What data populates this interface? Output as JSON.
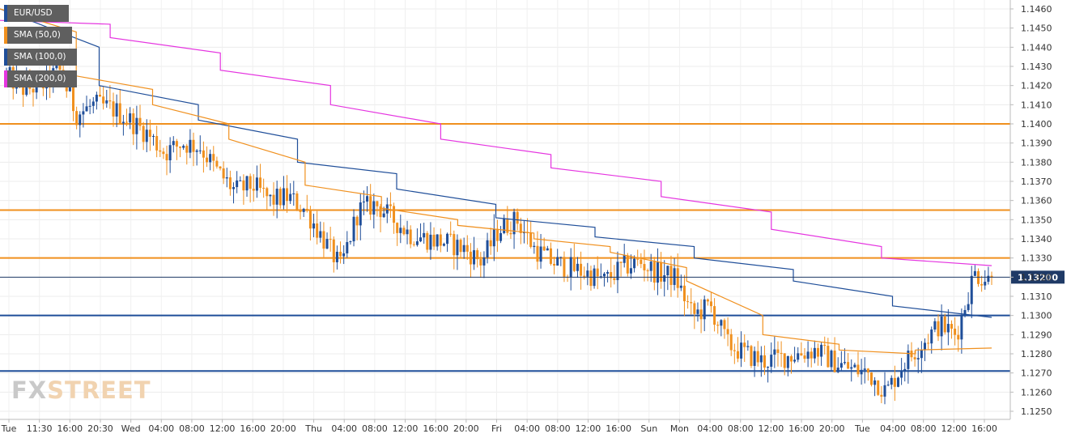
{
  "legend": {
    "symbol": "EUR/USD",
    "sma50": "SMA (50,0)",
    "sma100": "SMA (100,0)",
    "sma200": "SMA (200,0)"
  },
  "watermark": {
    "part1": "FX",
    "part2": "STREET"
  },
  "colors": {
    "bull": "#1f4e99",
    "bear": "#f0901e",
    "sma50": "#f0901e",
    "sma100": "#1f4e99",
    "sma200": "#e535e0",
    "resistance": "#f0901e",
    "support": "#1f4e99"
  },
  "chart_data": {
    "type": "candlestick",
    "ylim": [
      1.125,
      1.1465
    ],
    "yticks": [
      "1.1460",
      "1.1450",
      "1.1440",
      "1.1430",
      "1.1420",
      "1.1410",
      "1.1400",
      "1.1390",
      "1.1380",
      "1.1370",
      "1.1360",
      "1.1350",
      "1.1340",
      "1.1330",
      "1.1320",
      "1.1310",
      "1.1300",
      "1.1290",
      "1.1280",
      "1.1270",
      "1.1260",
      "1.1250"
    ],
    "xticks": [
      "Tue",
      "11:30",
      "16:00",
      "20:30",
      "Wed",
      "04:00",
      "08:00",
      "12:00",
      "16:00",
      "20:00",
      "Thu",
      "04:00",
      "08:00",
      "12:00",
      "16:00",
      "20:00",
      "Fri",
      "04:00",
      "08:00",
      "12:00",
      "16:00",
      "Sun",
      "Mon",
      "04:00",
      "08:00",
      "12:00",
      "16:00",
      "20:00",
      "Tue",
      "04:00",
      "08:00",
      "12:00",
      "16:00"
    ],
    "current_price": "1.13200",
    "horizontal_levels": [
      {
        "value": 1.14,
        "role": "resistance"
      },
      {
        "value": 1.1355,
        "role": "resistance"
      },
      {
        "value": 1.133,
        "role": "resistance"
      },
      {
        "value": 1.13,
        "role": "support"
      },
      {
        "value": 1.1271,
        "role": "support"
      }
    ],
    "price_path": [
      1.1425,
      1.1418,
      1.142,
      1.1428,
      1.1405,
      1.141,
      1.1408,
      1.1402,
      1.1395,
      1.1385,
      1.139,
      1.1388,
      1.1375,
      1.1365,
      1.1368,
      1.136,
      1.1362,
      1.1355,
      1.134,
      1.1325,
      1.1355,
      1.1358,
      1.135,
      1.1342,
      1.134,
      1.1338,
      1.1335,
      1.1328,
      1.1345,
      1.135,
      1.1335,
      1.1328,
      1.1325,
      1.1322,
      1.1318,
      1.1325,
      1.1328,
      1.1322,
      1.132,
      1.13,
      1.1305,
      1.1285,
      1.128,
      1.1276,
      1.1278,
      1.128,
      1.1282,
      1.1276,
      1.1272,
      1.127,
      1.126,
      1.1275,
      1.1285,
      1.1295,
      1.129,
      1.1322,
      1.1318
    ],
    "sma50": [
      [
        1.146,
        1.1448
      ],
      [
        1.1425,
        1.1418
      ],
      [
        1.141,
        1.14
      ],
      [
        1.1392,
        1.138
      ],
      [
        1.1368,
        1.1362
      ],
      [
        1.1356,
        1.135
      ],
      [
        1.1347,
        1.1343
      ],
      [
        1.134,
        1.1336
      ],
      [
        1.1333,
        1.1325
      ],
      [
        1.1318,
        1.13
      ],
      [
        1.129,
        1.1285
      ],
      [
        1.1282,
        1.128
      ],
      [
        1.1282,
        1.1283
      ]
    ],
    "sma100": [
      [
        1.146,
        1.144
      ],
      [
        1.142,
        1.141
      ],
      [
        1.1402,
        1.1392
      ],
      [
        1.138,
        1.1374
      ],
      [
        1.1366,
        1.1358
      ],
      [
        1.1351,
        1.1346
      ],
      [
        1.1341,
        1.1336
      ],
      [
        1.133,
        1.1324
      ],
      [
        1.1318,
        1.131
      ],
      [
        1.1305,
        1.1299
      ]
    ],
    "sma200": [
      [
        1.1454,
        1.1452
      ],
      [
        1.1445,
        1.1437
      ],
      [
        1.1428,
        1.142
      ],
      [
        1.141,
        1.14
      ],
      [
        1.1392,
        1.1384
      ],
      [
        1.1377,
        1.137
      ],
      [
        1.1362,
        1.1354
      ],
      [
        1.1345,
        1.1336
      ],
      [
        1.133,
        1.1326
      ]
    ]
  }
}
